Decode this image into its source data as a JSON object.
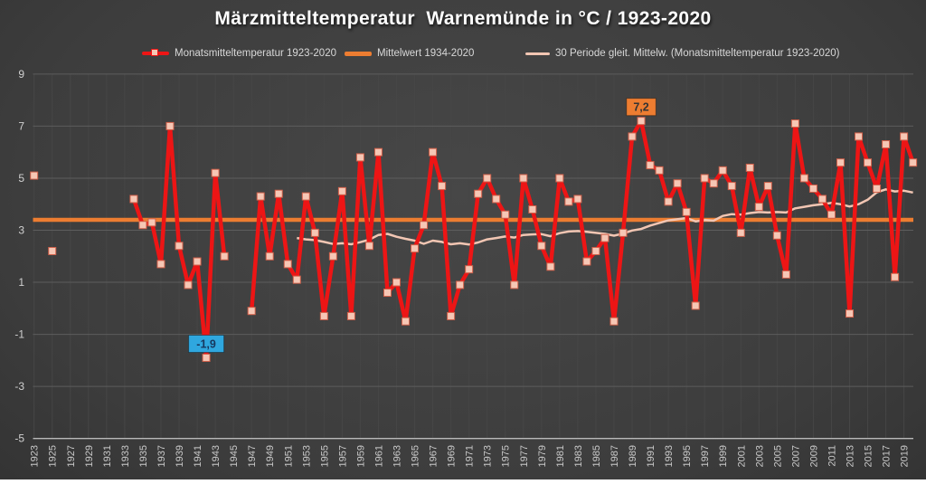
{
  "chart_data": {
    "type": "line",
    "title": "Märzmitteltemperatur  Warnemünde in °C / 1923-2020",
    "ylim": [
      -5,
      9
    ],
    "yticks": [
      9,
      7,
      5,
      3,
      1,
      -1,
      -3,
      -5
    ],
    "xticks": [
      1923,
      1925,
      1927,
      1929,
      1931,
      1933,
      1935,
      1937,
      1939,
      1941,
      1943,
      1945,
      1947,
      1949,
      1951,
      1953,
      1955,
      1957,
      1959,
      1961,
      1963,
      1965,
      1967,
      1969,
      1971,
      1973,
      1975,
      1977,
      1979,
      1981,
      1983,
      1985,
      1987,
      1989,
      1991,
      1993,
      1995,
      1997,
      1999,
      2001,
      2003,
      2005,
      2007,
      2009,
      2011,
      2013,
      2015,
      2017,
      2019
    ],
    "x_range": [
      1923,
      2020
    ],
    "grid": "horizontal-major-with-faint-vertical",
    "legend_position": "top",
    "series": [
      {
        "name": "Monatsmitteltemperatur 1923-2020",
        "type": "line-with-square-markers",
        "color": "#ED1515",
        "marker_fill": "#F6C7B5",
        "marker_edge": "#D0604A",
        "points": [
          [
            1923,
            5.1
          ],
          [
            1925,
            2.2
          ],
          [
            1934,
            4.2
          ],
          [
            1935,
            3.2
          ],
          [
            1936,
            3.3
          ],
          [
            1937,
            1.7
          ],
          [
            1938,
            7.0
          ],
          [
            1939,
            2.4
          ],
          [
            1940,
            0.9
          ],
          [
            1941,
            1.8
          ],
          [
            1942,
            -1.9
          ],
          [
            1943,
            5.2
          ],
          [
            1944,
            2.0
          ],
          [
            1947,
            -0.1
          ],
          [
            1948,
            4.3
          ],
          [
            1949,
            2.0
          ],
          [
            1950,
            4.4
          ],
          [
            1951,
            1.7
          ],
          [
            1952,
            1.1
          ],
          [
            1953,
            4.3
          ],
          [
            1954,
            2.9
          ],
          [
            1955,
            -0.3
          ],
          [
            1956,
            2.0
          ],
          [
            1957,
            4.5
          ],
          [
            1958,
            -0.3
          ],
          [
            1959,
            5.8
          ],
          [
            1960,
            2.4
          ],
          [
            1961,
            6.0
          ],
          [
            1962,
            0.6
          ],
          [
            1963,
            1.0
          ],
          [
            1964,
            -0.5
          ],
          [
            1965,
            2.3
          ],
          [
            1966,
            3.2
          ],
          [
            1967,
            6.0
          ],
          [
            1968,
            4.7
          ],
          [
            1969,
            -0.3
          ],
          [
            1970,
            0.9
          ],
          [
            1971,
            1.5
          ],
          [
            1972,
            4.4
          ],
          [
            1973,
            5.0
          ],
          [
            1974,
            4.2
          ],
          [
            1975,
            3.6
          ],
          [
            1976,
            0.9
          ],
          [
            1977,
            5.0
          ],
          [
            1978,
            3.8
          ],
          [
            1979,
            2.4
          ],
          [
            1980,
            1.6
          ],
          [
            1981,
            5.0
          ],
          [
            1982,
            4.1
          ],
          [
            1983,
            4.2
          ],
          [
            1984,
            1.8
          ],
          [
            1985,
            2.2
          ],
          [
            1986,
            2.7
          ],
          [
            1987,
            -0.5
          ],
          [
            1988,
            2.9
          ],
          [
            1989,
            6.6
          ],
          [
            1990,
            7.2
          ],
          [
            1991,
            5.5
          ],
          [
            1992,
            5.3
          ],
          [
            1993,
            4.1
          ],
          [
            1994,
            4.8
          ],
          [
            1995,
            3.7
          ],
          [
            1996,
            0.1
          ],
          [
            1997,
            5.0
          ],
          [
            1998,
            4.8
          ],
          [
            1999,
            5.3
          ],
          [
            2000,
            4.7
          ],
          [
            2001,
            2.9
          ],
          [
            2002,
            5.4
          ],
          [
            2003,
            3.9
          ],
          [
            2004,
            4.7
          ],
          [
            2005,
            2.8
          ],
          [
            2006,
            1.3
          ],
          [
            2007,
            7.1
          ],
          [
            2008,
            5.0
          ],
          [
            2009,
            4.6
          ],
          [
            2010,
            4.2
          ],
          [
            2011,
            3.6
          ],
          [
            2012,
            5.6
          ],
          [
            2013,
            -0.2
          ],
          [
            2014,
            6.6
          ],
          [
            2015,
            5.6
          ],
          [
            2016,
            4.6
          ],
          [
            2017,
            6.3
          ],
          [
            2018,
            1.2
          ],
          [
            2019,
            6.6
          ],
          [
            2020,
            5.6
          ]
        ]
      },
      {
        "name": "Mittelwert 1934-2020",
        "type": "horizontal-line",
        "color": "#ED7D31",
        "value": 3.4
      },
      {
        "name": "30 Periode gleit. Mittelw. (Monatsmitteltemperatur 1923-2020)",
        "type": "line",
        "color": "#F2C6B3",
        "points": [
          [
            1952,
            2.7
          ],
          [
            1953,
            2.65
          ],
          [
            1954,
            2.62
          ],
          [
            1955,
            2.55
          ],
          [
            1956,
            2.47
          ],
          [
            1957,
            2.5
          ],
          [
            1958,
            2.46
          ],
          [
            1959,
            2.54
          ],
          [
            1960,
            2.64
          ],
          [
            1961,
            2.82
          ],
          [
            1962,
            2.86
          ],
          [
            1963,
            2.75
          ],
          [
            1964,
            2.67
          ],
          [
            1965,
            2.6
          ],
          [
            1966,
            2.48
          ],
          [
            1967,
            2.6
          ],
          [
            1968,
            2.55
          ],
          [
            1969,
            2.46
          ],
          [
            1970,
            2.5
          ],
          [
            1971,
            2.45
          ],
          [
            1972,
            2.53
          ],
          [
            1973,
            2.65
          ],
          [
            1974,
            2.7
          ],
          [
            1975,
            2.76
          ],
          [
            1976,
            2.72
          ],
          [
            1977,
            2.82
          ],
          [
            1978,
            2.84
          ],
          [
            1979,
            2.85
          ],
          [
            1980,
            2.77
          ],
          [
            1981,
            2.89
          ],
          [
            1982,
            2.95
          ],
          [
            1983,
            2.97
          ],
          [
            1984,
            2.94
          ],
          [
            1985,
            2.9
          ],
          [
            1986,
            2.86
          ],
          [
            1987,
            2.79
          ],
          [
            1988,
            2.87
          ],
          [
            1989,
            2.99
          ],
          [
            1990,
            3.05
          ],
          [
            1991,
            3.18
          ],
          [
            1992,
            3.28
          ],
          [
            1993,
            3.38
          ],
          [
            1994,
            3.42
          ],
          [
            1995,
            3.47
          ],
          [
            1996,
            3.34
          ],
          [
            1997,
            3.39
          ],
          [
            1998,
            3.37
          ],
          [
            1999,
            3.55
          ],
          [
            2000,
            3.62
          ],
          [
            2001,
            3.6
          ],
          [
            2002,
            3.66
          ],
          [
            2003,
            3.7
          ],
          [
            2004,
            3.68
          ],
          [
            2005,
            3.7
          ],
          [
            2006,
            3.68
          ],
          [
            2007,
            3.84
          ],
          [
            2008,
            3.9
          ],
          [
            2009,
            3.96
          ],
          [
            2010,
            4.0
          ],
          [
            2011,
            4.05
          ],
          [
            2012,
            4.0
          ],
          [
            2013,
            3.91
          ],
          [
            2014,
            4.0
          ],
          [
            2015,
            4.17
          ],
          [
            2016,
            4.46
          ],
          [
            2017,
            4.57
          ],
          [
            2018,
            4.49
          ],
          [
            2019,
            4.52
          ],
          [
            2020,
            4.45
          ]
        ]
      }
    ],
    "annotations": [
      {
        "label": "7,2",
        "year": 1990,
        "value": 7.2,
        "box_color": "#ED7D31",
        "text_color": "#333333"
      },
      {
        "label": "-1,9",
        "year": 1942,
        "value": -1.9,
        "box_color": "#2FA7DF",
        "text_color": "#17375E"
      }
    ]
  },
  "colors": {
    "background_center": "#474747",
    "background_edge": "#1f1f1f",
    "gridline": "#5d5d5d",
    "axis_line": "#b9b9b9",
    "tick_label": "#d0d0d0",
    "title": "#ffffff"
  }
}
